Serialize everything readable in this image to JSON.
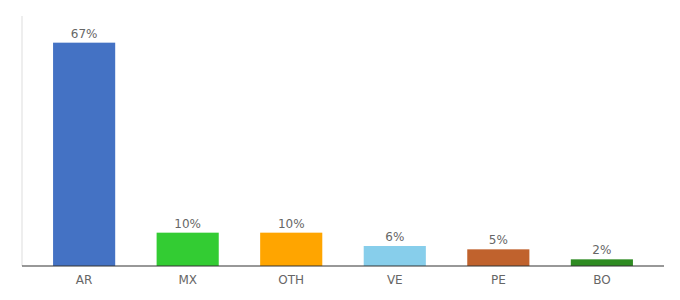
{
  "chart_data": {
    "type": "bar",
    "categories": [
      "AR",
      "MX",
      "OTH",
      "VE",
      "PE",
      "BO"
    ],
    "values": [
      67,
      10,
      10,
      6,
      5,
      2
    ],
    "value_labels": [
      "67%",
      "10%",
      "10%",
      "6%",
      "5%",
      "2%"
    ],
    "colors": [
      "#4472C4",
      "#33CC33",
      "#FFA500",
      "#87CEEB",
      "#C0622D",
      "#2E8B22"
    ],
    "ylim": [
      0,
      75
    ],
    "data_labels": true,
    "tick_labels": "x"
  }
}
